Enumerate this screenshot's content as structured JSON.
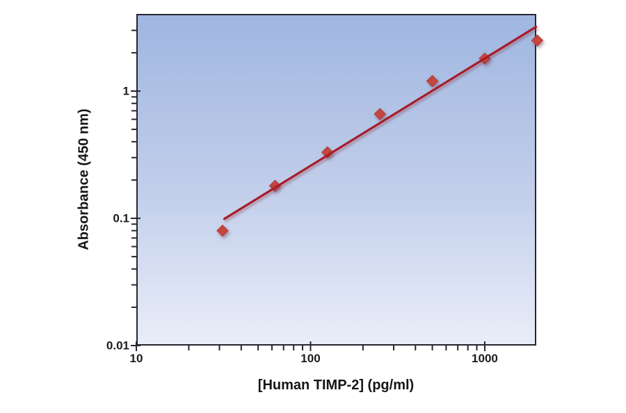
{
  "chart_data": {
    "type": "scatter",
    "title": "",
    "xlabel": "[Human TIMP-2] (pg/ml)",
    "ylabel": "Absorbance (450 nm)",
    "x_scale": "log",
    "y_scale": "log",
    "xlim": [
      10,
      1975
    ],
    "ylim": [
      0.01,
      4.04
    ],
    "grid": "off",
    "legend": "none",
    "x": [
      31.25,
      62.5,
      125,
      250,
      500,
      1000,
      2000
    ],
    "y": [
      0.08,
      0.18,
      0.33,
      0.66,
      1.2,
      1.8,
      2.5
    ],
    "trendline": {
      "x1": 32,
      "y1": 0.099,
      "x2": 1970,
      "y2": 3.2
    },
    "x_major_ticks": [
      {
        "value": 10,
        "label": "10"
      },
      {
        "value": 100,
        "label": "100"
      },
      {
        "value": 1000,
        "label": "1000"
      }
    ],
    "x_minor_ticks": [
      20,
      30,
      40,
      50,
      60,
      70,
      80,
      90,
      200,
      300,
      400,
      500,
      600,
      700,
      800,
      900
    ],
    "y_major_ticks": [
      {
        "value": 1,
        "label": "1"
      },
      {
        "value": 0.1,
        "label": "0.1"
      },
      {
        "value": 0.01,
        "label": "0.01"
      }
    ],
    "y_minor_ticks": [
      0.02,
      0.03,
      0.04,
      0.05,
      0.06,
      0.07,
      0.08,
      0.09,
      0.2,
      0.3,
      0.4,
      0.5,
      0.6,
      0.7,
      0.8,
      0.9,
      2,
      3
    ],
    "colors": {
      "marker_fill": "#c5463e",
      "marker_edge": "#ad3a33",
      "trend_line": "#a81c2a",
      "plot_gradient_top": "#9fb6e0",
      "plot_gradient_bottom": "#e9edf8",
      "frame": "#26262e",
      "text": "#1c1c1c"
    }
  }
}
